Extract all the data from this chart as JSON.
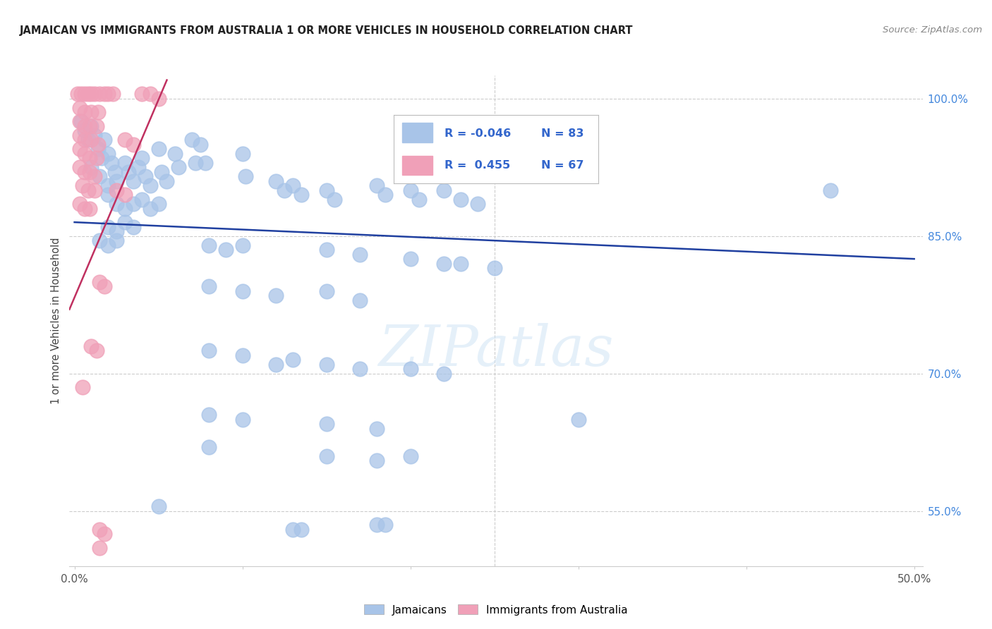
{
  "title": "JAMAICAN VS IMMIGRANTS FROM AUSTRALIA 1 OR MORE VEHICLES IN HOUSEHOLD CORRELATION CHART",
  "source": "Source: ZipAtlas.com",
  "ylabel": "1 or more Vehicles in Household",
  "ylim_bottom": 49.0,
  "ylim_top": 102.5,
  "xlim_left": -0.3,
  "xlim_right": 50.5,
  "yticks": [
    55.0,
    70.0,
    85.0,
    100.0
  ],
  "xtick_positions": [
    0.0,
    10.0,
    20.0,
    30.0,
    40.0,
    50.0
  ],
  "legend_blue_R": "-0.046",
  "legend_blue_N": "83",
  "legend_pink_R": "0.455",
  "legend_pink_N": "67",
  "blue_color": "#a8c4e8",
  "pink_color": "#f0a0b8",
  "blue_line_color": "#2040a0",
  "pink_line_color": "#c03060",
  "watermark": "ZIPatlas",
  "blue_dots": [
    [
      0.4,
      97.5
    ],
    [
      0.6,
      96.5
    ],
    [
      0.8,
      95.5
    ],
    [
      1.0,
      97.0
    ],
    [
      1.2,
      96.0
    ],
    [
      1.4,
      94.5
    ],
    [
      1.6,
      93.5
    ],
    [
      1.8,
      95.5
    ],
    [
      2.0,
      94.0
    ],
    [
      2.2,
      93.0
    ],
    [
      2.4,
      92.0
    ],
    [
      1.0,
      92.5
    ],
    [
      1.5,
      91.5
    ],
    [
      2.0,
      90.5
    ],
    [
      2.5,
      91.0
    ],
    [
      3.0,
      93.0
    ],
    [
      3.2,
      92.0
    ],
    [
      3.5,
      91.0
    ],
    [
      3.8,
      92.5
    ],
    [
      4.0,
      93.5
    ],
    [
      4.2,
      91.5
    ],
    [
      4.5,
      90.5
    ],
    [
      5.0,
      94.5
    ],
    [
      5.2,
      92.0
    ],
    [
      5.5,
      91.0
    ],
    [
      6.0,
      94.0
    ],
    [
      6.2,
      92.5
    ],
    [
      7.0,
      95.5
    ],
    [
      7.2,
      93.0
    ],
    [
      7.5,
      95.0
    ],
    [
      7.8,
      93.0
    ],
    [
      2.0,
      89.5
    ],
    [
      2.5,
      88.5
    ],
    [
      3.0,
      88.0
    ],
    [
      3.5,
      88.5
    ],
    [
      4.0,
      89.0
    ],
    [
      4.5,
      88.0
    ],
    [
      5.0,
      88.5
    ],
    [
      2.0,
      86.0
    ],
    [
      2.5,
      85.5
    ],
    [
      3.0,
      86.5
    ],
    [
      3.5,
      86.0
    ],
    [
      1.5,
      84.5
    ],
    [
      2.0,
      84.0
    ],
    [
      2.5,
      84.5
    ],
    [
      10.0,
      94.0
    ],
    [
      10.2,
      91.5
    ],
    [
      12.0,
      91.0
    ],
    [
      12.5,
      90.0
    ],
    [
      13.0,
      90.5
    ],
    [
      13.5,
      89.5
    ],
    [
      15.0,
      90.0
    ],
    [
      15.5,
      89.0
    ],
    [
      18.0,
      90.5
    ],
    [
      18.5,
      89.5
    ],
    [
      20.0,
      90.0
    ],
    [
      20.5,
      89.0
    ],
    [
      22.0,
      90.0
    ],
    [
      23.0,
      89.0
    ],
    [
      24.0,
      88.5
    ],
    [
      8.0,
      84.0
    ],
    [
      9.0,
      83.5
    ],
    [
      10.0,
      84.0
    ],
    [
      15.0,
      83.5
    ],
    [
      17.0,
      83.0
    ],
    [
      20.0,
      82.5
    ],
    [
      22.0,
      82.0
    ],
    [
      23.0,
      82.0
    ],
    [
      25.0,
      81.5
    ],
    [
      8.0,
      79.5
    ],
    [
      10.0,
      79.0
    ],
    [
      12.0,
      78.5
    ],
    [
      15.0,
      79.0
    ],
    [
      17.0,
      78.0
    ],
    [
      8.0,
      72.5
    ],
    [
      10.0,
      72.0
    ],
    [
      12.0,
      71.0
    ],
    [
      13.0,
      71.5
    ],
    [
      15.0,
      71.0
    ],
    [
      17.0,
      70.5
    ],
    [
      20.0,
      70.5
    ],
    [
      22.0,
      70.0
    ],
    [
      8.0,
      65.5
    ],
    [
      10.0,
      65.0
    ],
    [
      15.0,
      64.5
    ],
    [
      18.0,
      64.0
    ],
    [
      30.0,
      65.0
    ],
    [
      8.0,
      62.0
    ],
    [
      15.0,
      61.0
    ],
    [
      18.0,
      60.5
    ],
    [
      20.0,
      61.0
    ],
    [
      5.0,
      55.5
    ],
    [
      13.0,
      53.0
    ],
    [
      13.5,
      53.0
    ],
    [
      18.0,
      53.5
    ],
    [
      18.5,
      53.5
    ],
    [
      45.0,
      90.0
    ]
  ],
  "pink_dots": [
    [
      0.2,
      100.5
    ],
    [
      0.4,
      100.5
    ],
    [
      0.6,
      100.5
    ],
    [
      0.8,
      100.5
    ],
    [
      1.0,
      100.5
    ],
    [
      1.2,
      100.5
    ],
    [
      1.5,
      100.5
    ],
    [
      1.8,
      100.5
    ],
    [
      2.0,
      100.5
    ],
    [
      2.3,
      100.5
    ],
    [
      0.3,
      99.0
    ],
    [
      0.6,
      98.5
    ],
    [
      1.0,
      98.5
    ],
    [
      1.4,
      98.5
    ],
    [
      0.3,
      97.5
    ],
    [
      0.6,
      97.0
    ],
    [
      0.9,
      97.0
    ],
    [
      1.3,
      97.0
    ],
    [
      0.3,
      96.0
    ],
    [
      0.6,
      95.5
    ],
    [
      1.0,
      95.5
    ],
    [
      1.4,
      95.0
    ],
    [
      0.3,
      94.5
    ],
    [
      0.6,
      94.0
    ],
    [
      0.9,
      93.5
    ],
    [
      1.3,
      93.5
    ],
    [
      0.3,
      92.5
    ],
    [
      0.6,
      92.0
    ],
    [
      0.9,
      92.0
    ],
    [
      1.2,
      91.5
    ],
    [
      0.5,
      90.5
    ],
    [
      0.8,
      90.0
    ],
    [
      1.2,
      90.0
    ],
    [
      0.3,
      88.5
    ],
    [
      0.6,
      88.0
    ],
    [
      0.9,
      88.0
    ],
    [
      4.0,
      100.5
    ],
    [
      4.5,
      100.5
    ],
    [
      5.0,
      100.0
    ],
    [
      3.0,
      95.5
    ],
    [
      3.5,
      95.0
    ],
    [
      2.5,
      90.0
    ],
    [
      3.0,
      89.5
    ],
    [
      1.5,
      80.0
    ],
    [
      1.8,
      79.5
    ],
    [
      1.0,
      73.0
    ],
    [
      1.3,
      72.5
    ],
    [
      0.5,
      68.5
    ],
    [
      1.5,
      53.0
    ],
    [
      1.8,
      52.5
    ],
    [
      1.5,
      51.0
    ]
  ],
  "blue_trendline_x": [
    0.0,
    50.0
  ],
  "blue_trendline_y": [
    86.5,
    82.5
  ],
  "pink_trendline_x": [
    -0.3,
    5.5
  ],
  "pink_trendline_y": [
    77.0,
    102.0
  ]
}
